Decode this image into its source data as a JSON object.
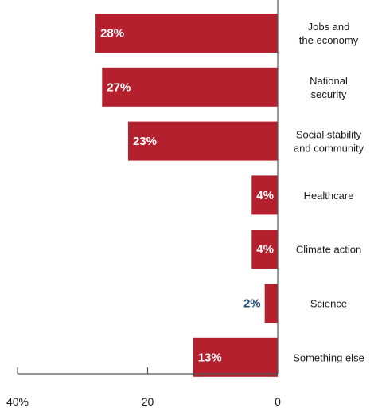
{
  "chart_data": {
    "type": "bar",
    "orientation": "horizontal",
    "categories": [
      [
        "Jobs and",
        "the economy"
      ],
      [
        "National",
        "security"
      ],
      [
        "Social stability",
        "and community"
      ],
      [
        "Healthcare"
      ],
      [
        "Climate action"
      ],
      [
        "Science"
      ],
      [
        "Something else"
      ]
    ],
    "values": [
      28,
      27,
      23,
      4,
      4,
      2,
      13
    ],
    "value_labels": [
      "28%",
      "27%",
      "23%",
      "4%",
      "4%",
      "2%",
      "13%"
    ],
    "xlim": [
      0,
      40
    ],
    "x_direction": "reversed",
    "ticks": [
      40,
      20,
      0
    ],
    "tick_labels": [
      "40%",
      "20",
      "0"
    ],
    "colors": {
      "bar": "#b5202e",
      "label_inside": "#ffffff",
      "label_outside": "#1f4e79",
      "axis": "#555555"
    }
  }
}
